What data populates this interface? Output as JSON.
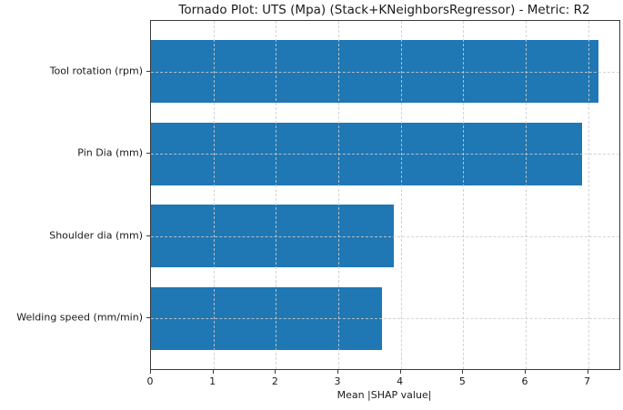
{
  "chart_data": {
    "type": "bar",
    "orientation": "horizontal",
    "title": "Tornado Plot: UTS (Mpa) (Stack+KNeighborsRegressor) - Metric: R2",
    "xlabel": "Mean |SHAP value|",
    "ylabel": "",
    "categories": [
      "Tool rotation (rpm)",
      "Pin Dia (mm)",
      "Shoulder dia (mm)",
      "Welding speed (mm/min)"
    ],
    "values": [
      7.17,
      6.91,
      3.89,
      3.7
    ],
    "xticks": [
      "0",
      "1",
      "2",
      "3",
      "4",
      "5",
      "6",
      "7"
    ],
    "xtick_values": [
      0,
      1,
      2,
      3,
      4,
      5,
      6,
      7
    ],
    "xlim": [
      0,
      7.5
    ],
    "grid": true,
    "grid_style": "dashed",
    "legend": null,
    "bar_color": "#1f77b4",
    "grid_color": "#cdcdcd",
    "spine_color": "#3a3a3a"
  }
}
